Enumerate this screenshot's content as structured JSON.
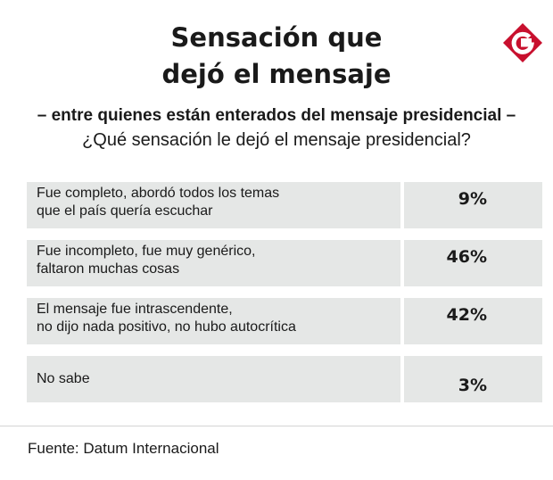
{
  "title_lines": [
    "Sensación que",
    "dejó el mensaje"
  ],
  "subtitle": "– entre quienes están enterados del mensaje presidencial –",
  "question": "¿Qué sensación le dejó el mensaje presidencial?",
  "logo": {
    "letter": "G",
    "icon": "g-logo-icon",
    "color": "#c8102e"
  },
  "chart_data": {
    "type": "table",
    "title": "Sensación que dejó el mensaje",
    "subtitle": "– entre quienes están enterados del mensaje presidencial –",
    "question": "¿Qué sensación le dejó el mensaje presidencial?",
    "rows": [
      {
        "label": "Fue completo, abordó todos los temas\nque el país quería escuchar",
        "value": 9,
        "value_label": "9%"
      },
      {
        "label": "Fue incompleto, fue muy genérico,\nfaltaron muchas cosas",
        "value": 46,
        "value_label": "46%"
      },
      {
        "label": "El mensaje fue intrascendente,\nno dijo nada positivo, no hubo autocrítica",
        "value": 42,
        "value_label": "42%"
      },
      {
        "label": "No sabe",
        "value": 3,
        "value_label": "3%"
      }
    ]
  },
  "source": "Fuente: Datum Internacional",
  "colors": {
    "row_bg": "#e5e7e6",
    "text": "#1a1a1a",
    "brand": "#c8102e"
  }
}
